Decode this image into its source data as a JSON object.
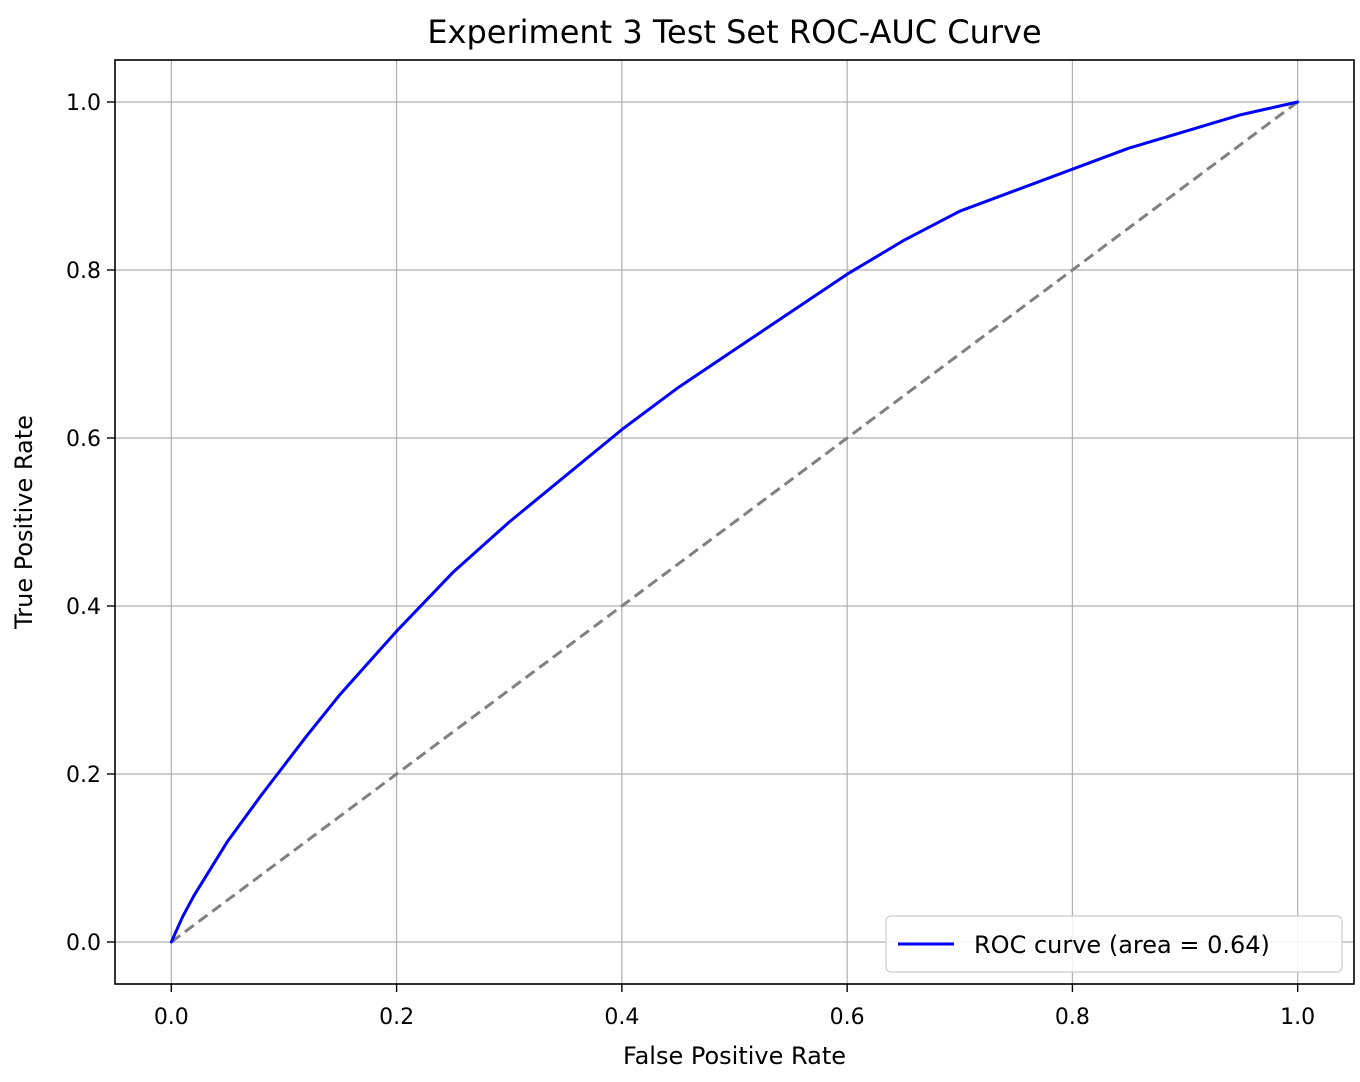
{
  "chart_data": {
    "type": "line",
    "title": "Experiment 3 Test Set ROC-AUC Curve",
    "xlabel": "False Positive Rate",
    "ylabel": "True Positive Rate",
    "xlim": [
      -0.05,
      1.05
    ],
    "ylim": [
      -0.05,
      1.05
    ],
    "xticks": [
      0.0,
      0.2,
      0.4,
      0.6,
      0.8,
      1.0
    ],
    "yticks": [
      0.0,
      0.2,
      0.4,
      0.6,
      0.8,
      1.0
    ],
    "grid": true,
    "legend_position": "lower-right",
    "series": [
      {
        "name": "ROC curve (area = 0.64)",
        "color": "#0000ff",
        "style": "solid",
        "x": [
          0.0,
          0.01,
          0.02,
          0.05,
          0.08,
          0.1,
          0.12,
          0.15,
          0.18,
          0.2,
          0.25,
          0.3,
          0.35,
          0.4,
          0.45,
          0.5,
          0.55,
          0.6,
          0.65,
          0.7,
          0.75,
          0.8,
          0.85,
          0.9,
          0.95,
          1.0
        ],
        "y": [
          0.0,
          0.03,
          0.055,
          0.12,
          0.175,
          0.21,
          0.245,
          0.295,
          0.34,
          0.37,
          0.44,
          0.5,
          0.555,
          0.61,
          0.66,
          0.705,
          0.75,
          0.795,
          0.835,
          0.87,
          0.895,
          0.92,
          0.945,
          0.965,
          0.985,
          1.0
        ]
      },
      {
        "color": "#808080",
        "style": "dashed",
        "x": [
          0.0,
          1.0
        ],
        "y": [
          0.0,
          1.0
        ]
      }
    ]
  }
}
